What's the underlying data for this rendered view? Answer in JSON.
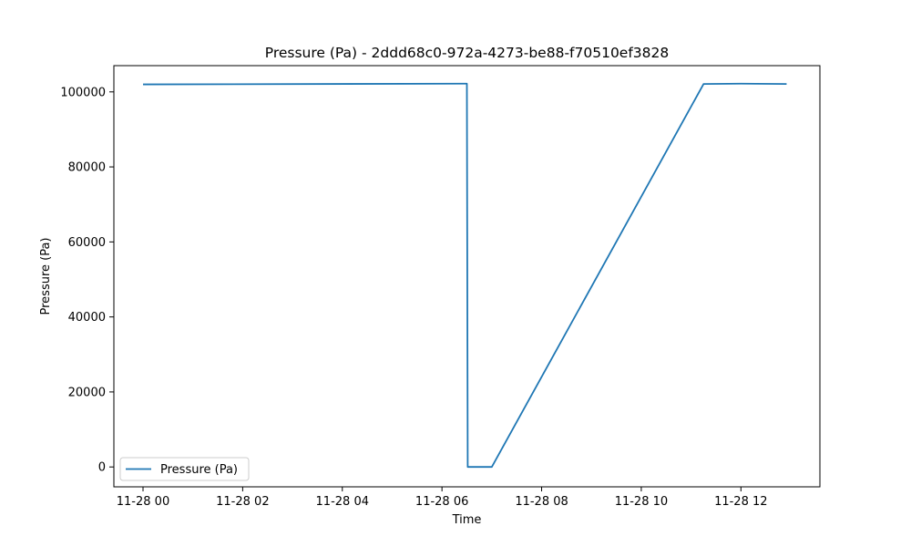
{
  "chart_data": {
    "type": "line",
    "title": "Pressure (Pa) - 2ddd68c0-972a-4273-be88-f70510ef3828",
    "xlabel": "Time",
    "ylabel": "Pressure (Pa)",
    "xlim": [
      "2023-11-28 00:00",
      "2023-11-28 13:00"
    ],
    "ylim": [
      -5300,
      107000
    ],
    "x_ticks": [
      "2023-11-28 00:00",
      "2023-11-28 02:00",
      "2023-11-28 04:00",
      "2023-11-28 06:00",
      "2023-11-28 08:00",
      "2023-11-28 10:00",
      "2023-11-28 12:00"
    ],
    "x_tick_labels": [
      "11-28 00",
      "11-28 02",
      "11-28 04",
      "11-28 06",
      "11-28 08",
      "11-28 10",
      "11-28 12"
    ],
    "y_ticks": [
      0,
      20000,
      40000,
      60000,
      80000,
      100000
    ],
    "y_tick_labels": [
      "0",
      "20000",
      "40000",
      "60000",
      "80000",
      "100000"
    ],
    "grid": false,
    "legend": {
      "position": "lower-left",
      "entries": [
        "Pressure (Pa)"
      ]
    },
    "series": [
      {
        "name": "Pressure (Pa)",
        "color": "#1f77b4",
        "x": [
          "2023-11-28 00:00",
          "2023-11-28 06:30",
          "2023-11-28 06:31",
          "2023-11-28 07:00",
          "2023-11-28 11:15",
          "2023-11-28 12:00",
          "2023-11-28 12:55"
        ],
        "y": [
          102000,
          102200,
          0,
          0,
          102100,
          102200,
          102100
        ]
      }
    ]
  }
}
